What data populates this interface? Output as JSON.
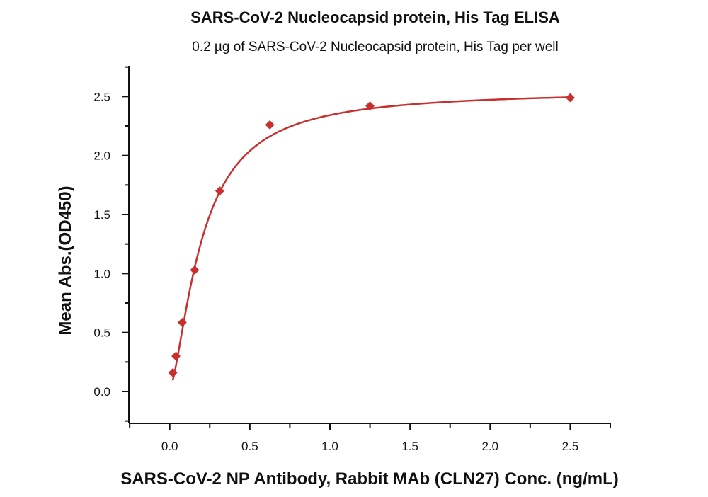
{
  "chart_data": {
    "type": "scatter",
    "title": "SARS-CoV-2 Nucleocapsid protein, His Tag ELISA",
    "subtitle": "0.2 µg of SARS-CoV-2 Nucleocapsid protein, His Tag per well",
    "xlabel": "SARS-CoV-2 NP Antibody, Rabbit MAb (CLN27) Conc. (ng/mL)",
    "ylabel": "Mean Abs.(OD450)",
    "xlim": [
      -0.255,
      2.75
    ],
    "ylim": [
      -0.27,
      2.76
    ],
    "xticks": [
      "0.0",
      "0.5",
      "1.0",
      "1.5",
      "2.0",
      "2.5"
    ],
    "yticks": [
      "0.0",
      "0.5",
      "1.0",
      "1.5",
      "2.0",
      "2.5"
    ],
    "grid": false,
    "color": "#c8302f",
    "marker": "diamond",
    "fit": "4-parameter logistic curve",
    "x": [
      0.0195,
      0.039,
      0.078,
      0.156,
      0.3125,
      0.625,
      1.25,
      2.5
    ],
    "y": [
      0.16,
      0.3,
      0.585,
      1.03,
      1.7,
      2.26,
      2.42,
      2.49
    ]
  }
}
